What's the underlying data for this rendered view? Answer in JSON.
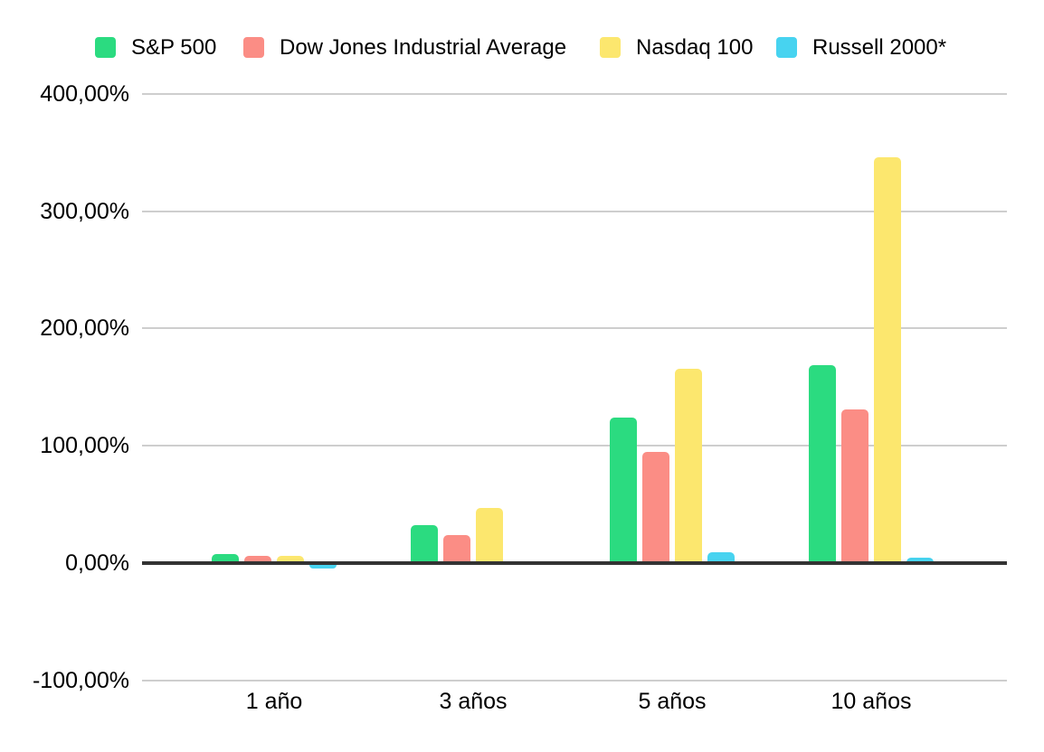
{
  "chart_data": {
    "type": "bar",
    "title": "",
    "xlabel": "",
    "ylabel": "",
    "categories": [
      "1 año",
      "3 años",
      "5 años",
      "10 años"
    ],
    "series": [
      {
        "name": "S&P 500",
        "color": "#2BDB80",
        "values": [
          8,
          32,
          124,
          169
        ]
      },
      {
        "name": "Dow Jones Industrial Average",
        "color": "#FB8D85",
        "values": [
          6,
          24,
          95,
          131
        ]
      },
      {
        "name": "Nasdaq 100",
        "color": "#FCE76E",
        "values": [
          6,
          47,
          166,
          346
        ]
      },
      {
        "name": "Russell 2000*",
        "color": "#47D3F0",
        "values": [
          -3,
          0,
          9,
          5
        ]
      }
    ],
    "y_ticks": [
      {
        "label": "400,00%",
        "value": 400
      },
      {
        "label": "300,00%",
        "value": 300
      },
      {
        "label": "200,00%",
        "value": 200
      },
      {
        "label": "100,00%",
        "value": 100
      },
      {
        "label": "0,00%",
        "value": 0
      },
      {
        "label": "-100,00%",
        "value": -100
      }
    ],
    "ylim": [
      -100,
      400
    ],
    "grid": true,
    "legend_position": "top",
    "colors": {
      "background": "#ffffff",
      "gridline": "#cecece",
      "zero_axis": "#333333",
      "text": "#000000"
    }
  }
}
